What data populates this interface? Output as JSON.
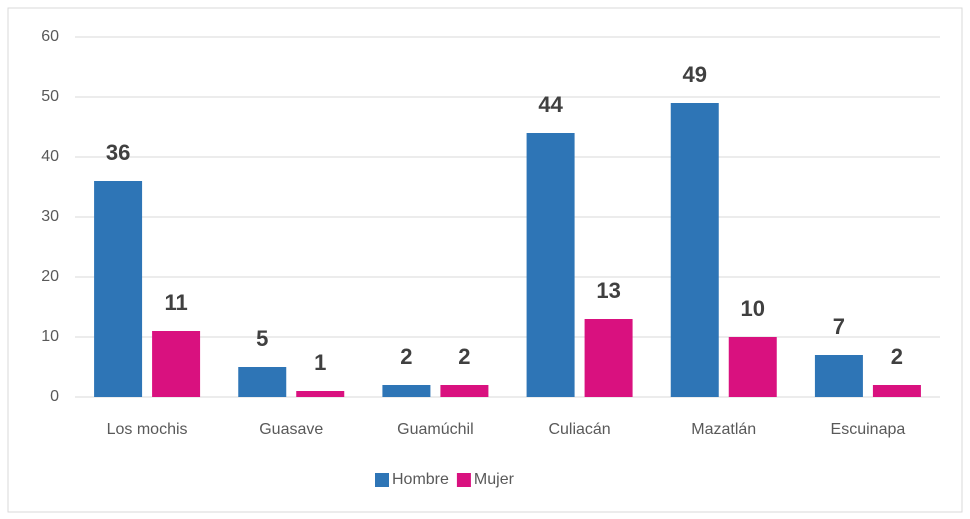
{
  "chart_data": {
    "type": "bar",
    "categories": [
      "Los mochis",
      "Guasave",
      "Guamúchil",
      "Culiacán",
      "Mazatlán",
      "Escuinapa"
    ],
    "series": [
      {
        "name": "Hombre",
        "color": "#2e75b6",
        "values": [
          36,
          5,
          2,
          44,
          49,
          7
        ]
      },
      {
        "name": "Mujer",
        "color": "#d9117f",
        "values": [
          11,
          1,
          2,
          13,
          10,
          2
        ]
      }
    ],
    "ylim": [
      0,
      60
    ],
    "yticks": [
      0,
      10,
      20,
      30,
      40,
      50,
      60
    ],
    "grid": true,
    "legend": "bottom"
  }
}
